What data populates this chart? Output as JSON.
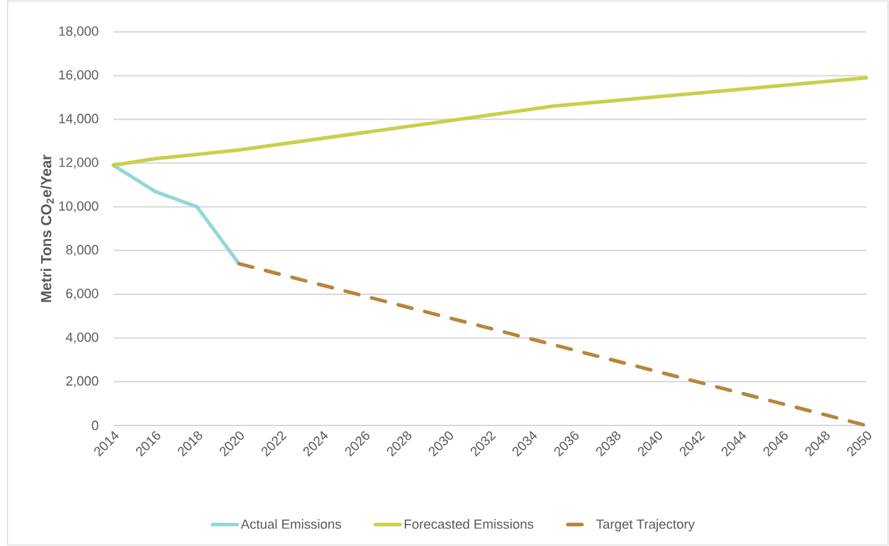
{
  "chart_data": {
    "type": "line",
    "ylabel": "Metri Tons CO$_{2}$e/Year",
    "series": [
      {
        "name": "Actual Emissions",
        "color": "#93d6d8",
        "x": [
          2014,
          2016,
          2018,
          2020
        ],
        "values": [
          11900,
          10700,
          10000,
          7400
        ]
      },
      {
        "name": "Forecasted Emissions",
        "color": "#c8d04a",
        "x": [
          2014,
          2016,
          2020,
          2035,
          2050
        ],
        "values": [
          11900,
          12200,
          12600,
          14600,
          15900
        ]
      },
      {
        "name": "Target Trajectory",
        "color": "#b8843c",
        "x": [
          2020,
          2050
        ],
        "values": [
          7400,
          0
        ],
        "line_style": "dashed"
      }
    ],
    "xlim": [
      2014,
      2050
    ],
    "xticks": [
      2014,
      2016,
      2018,
      2020,
      2022,
      2024,
      2026,
      2028,
      2030,
      2032,
      2034,
      2036,
      2038,
      2040,
      2042,
      2044,
      2046,
      2048,
      2050
    ],
    "ylim": [
      0,
      18000
    ],
    "yticks": [
      {
        "value": 0,
        "label": "0"
      },
      {
        "value": 2000,
        "label": "2,000"
      },
      {
        "value": 4000,
        "label": "4,000"
      },
      {
        "value": 6000,
        "label": "6,000"
      },
      {
        "value": 8000,
        "label": "8,000"
      },
      {
        "value": 10000,
        "label": "10,000"
      },
      {
        "value": 12000,
        "label": "12,000"
      },
      {
        "value": 14000,
        "label": "14,000"
      },
      {
        "value": 16000,
        "label": "16,000"
      },
      {
        "value": 18000,
        "label": "18,000"
      }
    ],
    "grid": "y",
    "legend": "bottom"
  }
}
